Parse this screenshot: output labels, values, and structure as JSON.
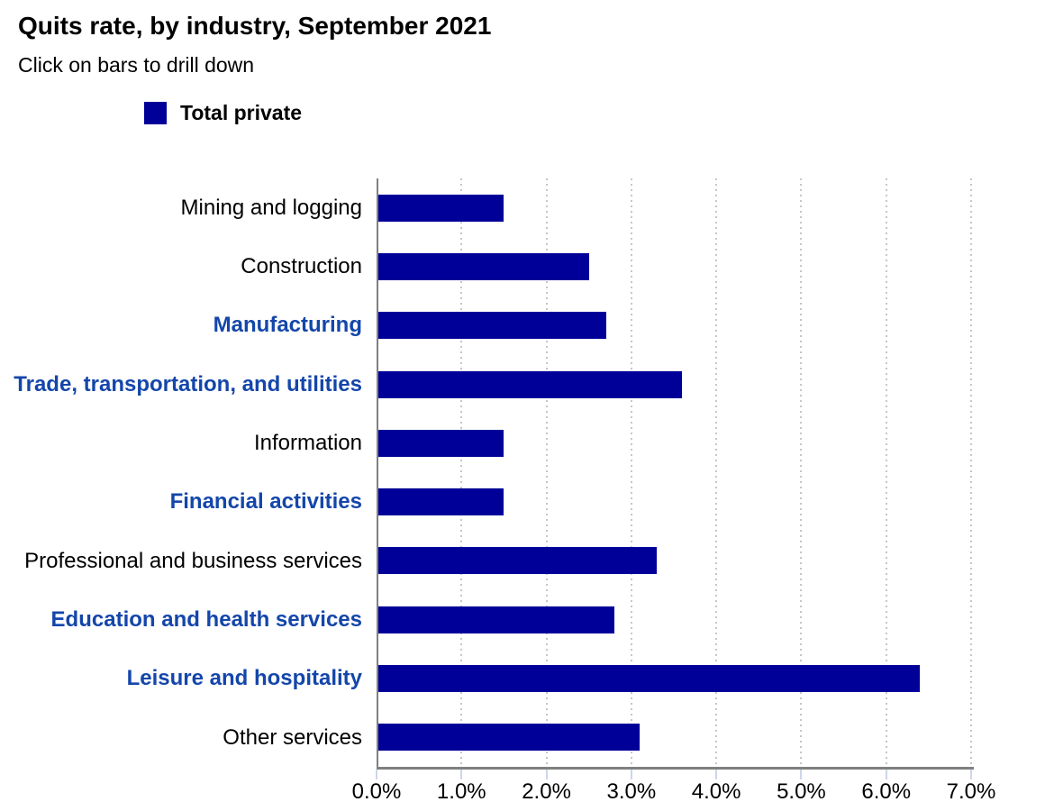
{
  "header": {
    "title": "Quits rate, by industry, September 2021",
    "subtitle": "Click on bars to drill down"
  },
  "legend": {
    "items": [
      {
        "label": "Total private",
        "color": "#000099"
      }
    ]
  },
  "colors": {
    "bar": "#000099",
    "drillable_label": "#1446aa",
    "plain_label": "#000000",
    "axis_line": "#808080",
    "tick": "#ccd6eb",
    "gridline": "#c6c6c6"
  },
  "chart_data": {
    "type": "bar",
    "orientation": "horizontal",
    "title": "Quits rate, by industry, September 2021",
    "subtitle": "Click on bars to drill down",
    "series_name": "Total private",
    "categories": [
      "Mining and logging",
      "Construction",
      "Manufacturing",
      "Trade, transportation, and utilities",
      "Information",
      "Financial activities",
      "Professional and business services",
      "Education and health services",
      "Leisure and hospitality",
      "Other services"
    ],
    "values": [
      1.5,
      2.5,
      2.7,
      3.6,
      1.5,
      1.5,
      3.3,
      2.8,
      6.4,
      3.1
    ],
    "drillable": [
      false,
      false,
      true,
      true,
      false,
      true,
      false,
      true,
      true,
      false
    ],
    "x_ticks": [
      "0.0%",
      "1.0%",
      "2.0%",
      "3.0%",
      "4.0%",
      "5.0%",
      "6.0%",
      "7.0%"
    ],
    "xlabel": "",
    "ylabel": "",
    "xlim": [
      0,
      7
    ],
    "grid": "vertical-dotted",
    "legend_position": "top-left"
  }
}
